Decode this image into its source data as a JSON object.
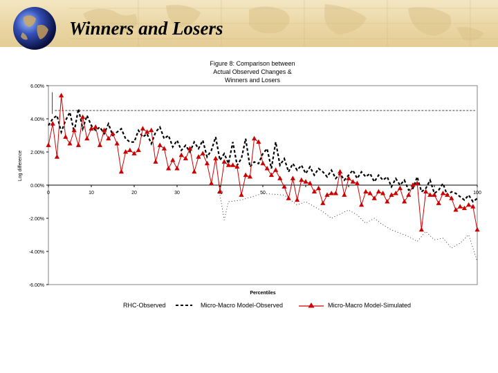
{
  "slide": {
    "title": "Winners and Losers"
  },
  "chart_data": {
    "type": "line",
    "title_lines": [
      "Figure 8: Comparison between",
      "Actual Observed Changes &",
      "Winners and Losers"
    ],
    "xlabel": "Percentiles",
    "ylabel": "Log difference",
    "xlim": [
      0,
      100
    ],
    "ylim": [
      -6,
      6
    ],
    "x_ticks": [
      "0",
      "10",
      "20",
      "30",
      "40",
      "50",
      "60",
      "70",
      "80",
      "90",
      "100"
    ],
    "x_tick_labels_shown": [
      "0",
      "10",
      "20",
      "30",
      "40",
      "50",
      "",
      "",
      "",
      "",
      "100"
    ],
    "y_ticks": [
      {
        "value": 6,
        "label": "6.00%"
      },
      {
        "value": 4,
        "label": "4.00%"
      },
      {
        "value": 2,
        "label": "2.00%"
      },
      {
        "value": 0,
        "label": "0.00%"
      },
      {
        "value": -2,
        "label": "-2.00%"
      },
      {
        "value": -4,
        "label": "-4.00%"
      },
      {
        "value": -6,
        "label": "-6.00%"
      }
    ],
    "legend_position": "bottom",
    "series": [
      {
        "name": "RHC-Observed",
        "style": "dashed",
        "color": "#000000",
        "x": [
          1.5,
          99.5
        ],
        "values": [
          4.5,
          4.5
        ]
      },
      {
        "name": "Micro-Macro Model-Observed",
        "style": "dashed-thick",
        "color": "#000000",
        "x": [
          0,
          1,
          2,
          3,
          4,
          5,
          6,
          7,
          8,
          9,
          10,
          11,
          12,
          13,
          14,
          15,
          16,
          17,
          18,
          19,
          20,
          21,
          22,
          23,
          24,
          25,
          26,
          27,
          28,
          29,
          30,
          31,
          32,
          33,
          34,
          35,
          36,
          37,
          38,
          39,
          40,
          41,
          42,
          43,
          44,
          45,
          46,
          47,
          48,
          49,
          50,
          51,
          52,
          53,
          54,
          55,
          56,
          57,
          58,
          59,
          60,
          61,
          62,
          63,
          64,
          65,
          66,
          67,
          68,
          69,
          70,
          71,
          72,
          73,
          74,
          75,
          76,
          77,
          78,
          79,
          80,
          81,
          82,
          83,
          84,
          85,
          86,
          87,
          88,
          89,
          90,
          91,
          92,
          93,
          94,
          95,
          96,
          97,
          98,
          99,
          100
        ],
        "values": [
          3.6,
          4.0,
          4.2,
          3.2,
          3.9,
          4.4,
          3.2,
          4.6,
          3.4,
          4.2,
          3.6,
          3.3,
          3.5,
          3.1,
          3.7,
          3.0,
          3.2,
          3.4,
          2.8,
          2.6,
          2.6,
          3.3,
          2.9,
          3.1,
          2.5,
          3.2,
          3.5,
          2.8,
          3.0,
          2.3,
          2.7,
          2.1,
          2.4,
          2.0,
          2.6,
          2.2,
          2.7,
          1.7,
          2.1,
          2.9,
          1.5,
          1.9,
          1.3,
          2.6,
          1.2,
          1.6,
          2.8,
          1.1,
          1.4,
          1.3,
          1.9,
          2.2,
          1.0,
          2.6,
          1.2,
          1.6,
          0.8,
          1.3,
          0.9,
          1.2,
          0.7,
          1.1,
          0.6,
          1.0,
          0.8,
          0.5,
          0.9,
          0.4,
          0.7,
          0.3,
          0.6,
          0.9,
          0.4,
          0.8,
          0.5,
          0.7,
          0.2,
          0.6,
          0.3,
          0.5,
          -0.1,
          0.4,
          0.0,
          0.3,
          -0.3,
          -0.2,
          0.5,
          -0.4,
          -0.2,
          0.3,
          -0.5,
          -0.3,
          0.1,
          -0.6,
          -0.4,
          -0.5,
          -0.7,
          -0.9,
          -0.6,
          -1.0,
          -0.8
        ]
      },
      {
        "name": "Micro-Macro Model-Simulated",
        "style": "solid-triangle",
        "color": "#cc0000",
        "x": [
          0,
          1,
          2,
          3,
          4,
          5,
          6,
          7,
          8,
          9,
          10,
          11,
          12,
          13,
          14,
          15,
          16,
          17,
          18,
          19,
          20,
          21,
          22,
          23,
          24,
          25,
          26,
          27,
          28,
          29,
          30,
          31,
          32,
          33,
          34,
          35,
          36,
          37,
          38,
          39,
          40,
          41,
          42,
          43,
          44,
          45,
          46,
          47,
          48,
          49,
          50,
          51,
          52,
          53,
          54,
          55,
          56,
          57,
          58,
          59,
          60,
          61,
          62,
          63,
          64,
          65,
          66,
          67,
          68,
          69,
          70,
          71,
          72,
          73,
          74,
          75,
          76,
          77,
          78,
          79,
          80,
          81,
          82,
          83,
          84,
          85,
          86,
          87,
          88,
          89,
          90,
          91,
          92,
          93,
          94,
          95,
          96,
          97,
          98,
          99,
          100
        ],
        "values": [
          2.4,
          3.7,
          1.7,
          5.4,
          2.9,
          2.5,
          3.3,
          2.4,
          4.1,
          2.8,
          3.4,
          3.5,
          2.4,
          3.3,
          2.8,
          3.1,
          2.5,
          0.8,
          2.0,
          2.1,
          1.9,
          2.1,
          3.4,
          3.2,
          3.3,
          1.4,
          2.4,
          2.2,
          1.0,
          1.5,
          1.0,
          1.8,
          1.6,
          2.2,
          0.8,
          1.7,
          1.9,
          1.3,
          0.1,
          1.6,
          -0.4,
          1.4,
          1.2,
          1.2,
          1.1,
          -0.6,
          0.6,
          0.5,
          2.8,
          2.6,
          1.3,
          1.0,
          0.6,
          0.9,
          0.4,
          -0.1,
          -0.8,
          0.4,
          -0.9,
          0.3,
          0.2,
          0.1,
          -0.4,
          -0.2,
          -1.1,
          -0.6,
          -0.5,
          -0.5,
          0.8,
          -0.6,
          0.4,
          0.2,
          0.1,
          -1.2,
          -0.4,
          -0.5,
          -0.8,
          -0.4,
          -0.5,
          -1.0,
          -0.6,
          -0.5,
          -0.2,
          -1.0,
          -0.6,
          0.0,
          0.1,
          -2.7,
          -0.4,
          -0.6,
          -0.6,
          -1.1,
          -0.5,
          -0.6,
          -0.8,
          -1.5,
          -1.3,
          -1.4,
          -1.2,
          -1.3,
          -2.7
        ]
      },
      {
        "name": "dotted-minor-series",
        "style": "dotted",
        "color": "#000000",
        "x": [
          40,
          41,
          42,
          45,
          50,
          55,
          58,
          60,
          64,
          66,
          70,
          72,
          74,
          76,
          78,
          80,
          82,
          84,
          86,
          88,
          90,
          92,
          94,
          96,
          98,
          100
        ],
        "values": [
          -0.6,
          -2.1,
          -1.0,
          -0.9,
          -0.5,
          -0.6,
          -1.2,
          -1.0,
          -1.6,
          -2.0,
          -1.5,
          -1.8,
          -2.3,
          -2.0,
          -2.4,
          -2.7,
          -2.9,
          -3.1,
          -3.4,
          -2.8,
          -3.3,
          -3.2,
          -3.8,
          -3.5,
          -3.0,
          -4.6
        ]
      }
    ],
    "legend": [
      {
        "label": "RHC-Observed"
      },
      {
        "label": "Micro-Macro Model-Observed"
      },
      {
        "label": "Micro-Macro Model-Simulated"
      }
    ]
  }
}
